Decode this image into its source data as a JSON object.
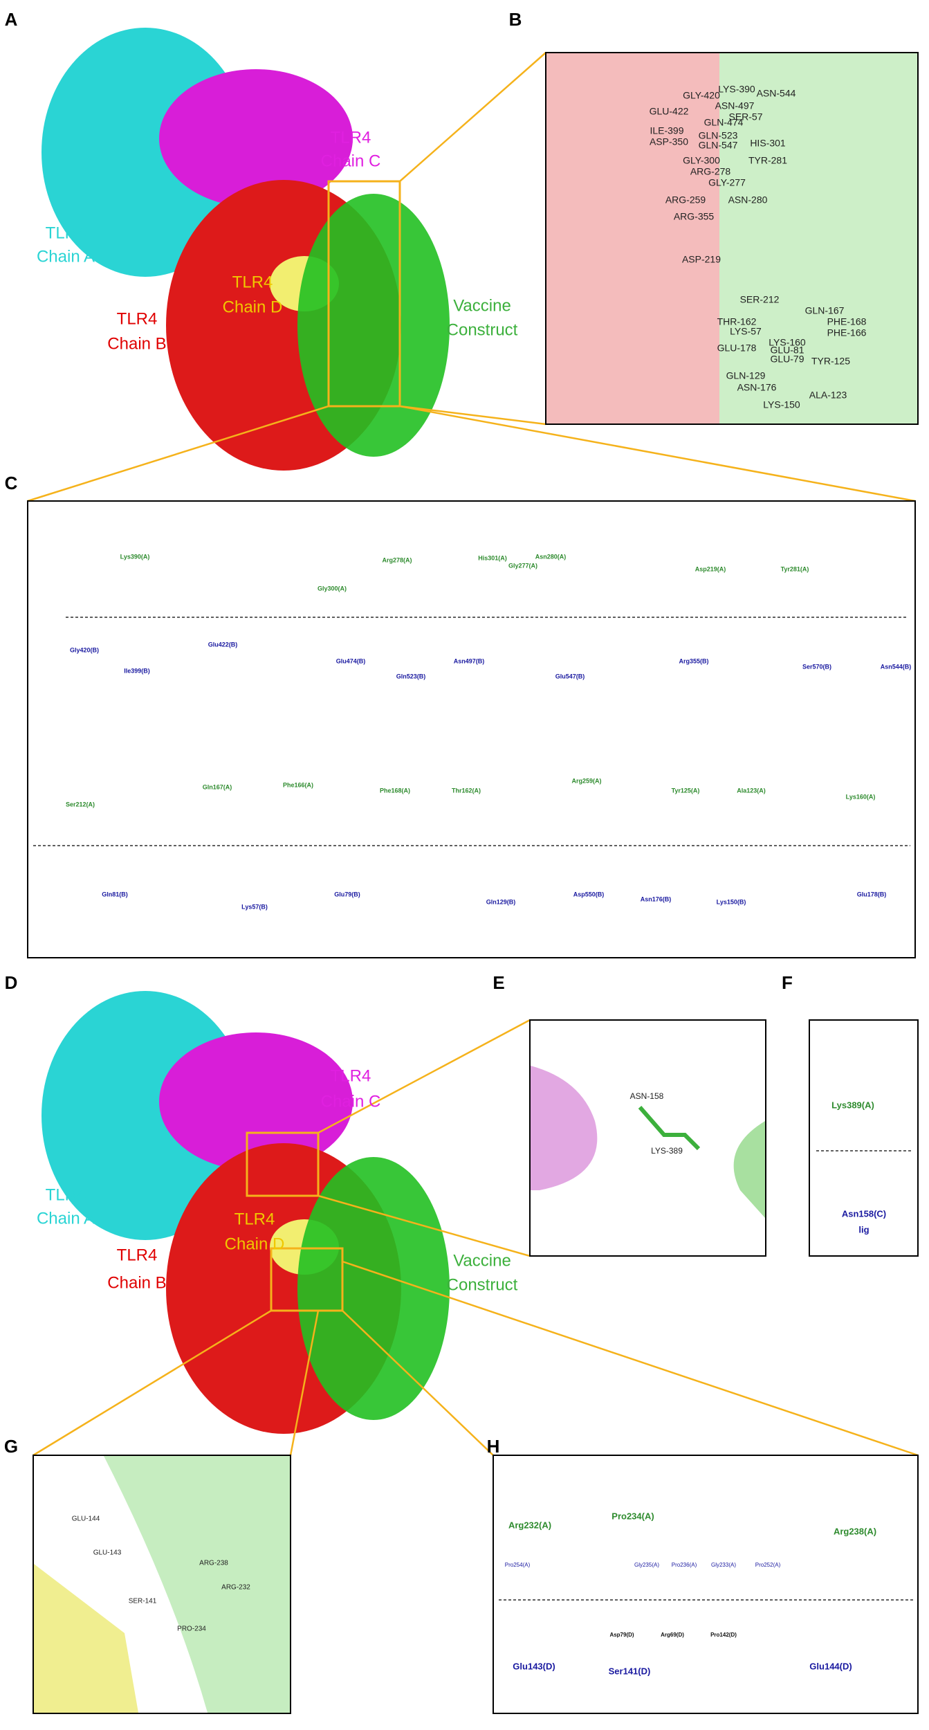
{
  "panels": [
    {
      "letter": "A",
      "labels": [
        "TLR4",
        "Chain A",
        "TLR4",
        "Chain C",
        "TLR4",
        "Chain D",
        "TLR4",
        "Chain B",
        "Vaccine",
        "Construct"
      ]
    },
    {
      "letter": "B",
      "labels": [
        "GLY-420",
        "LYS-390",
        "ASN-544",
        "ASN-497",
        "SER-57",
        "GLU-422",
        "GLN-474",
        "GLN-523",
        "ILE-399",
        "ASP-350",
        "GLN-547",
        "HIS-301",
        "GLY-300",
        "TYR-281",
        "ARG-278",
        "GLY-277",
        "ARG-259",
        "ASN-280",
        "ARG-355",
        "ASP-219",
        "SER-212",
        "GLN-167",
        "THR-162",
        "PHE-168",
        "LYS-57",
        "PHE-166",
        "LYS-160",
        "GLU-178",
        "GLU-81",
        "GLU-79",
        "TYR-125",
        "GLN-129",
        "ASN-176",
        "ALA-123",
        "LYS-150"
      ]
    },
    {
      "letter": "C",
      "labels": [
        "Lys390(A)",
        "Gly300(A)",
        "Arg278(A)",
        "His301(A)",
        "Gly277(A)",
        "Asn280(A)",
        "Asp219(A)",
        "Tyr281(A)",
        "Gly420(B)",
        "Ile399(B)",
        "Glu422(B)",
        "Glu474(B)",
        "Gln523(B)",
        "Asn497(B)",
        "Glu547(B)",
        "Arg355(B)",
        "Ser570(B)",
        "Asn544(B)",
        "Ser212(A)",
        "Gln167(A)",
        "Phe166(A)",
        "Phe168(A)",
        "Thr162(A)",
        "Arg259(A)",
        "Tyr125(A)",
        "Ala123(A)",
        "Lys160(A)",
        "Gln81(B)",
        "Lys57(B)",
        "Glu79(B)",
        "Gln129(B)",
        "Asp550(B)",
        "Asn176(B)",
        "Lys150(B)",
        "Glu178(B)"
      ]
    },
    {
      "letter": "D",
      "labels": [
        "TLR4",
        "Chain C",
        "TLR4",
        "Chain A",
        "TLR4",
        "Chain D",
        "TLR4",
        "Chain B",
        "Vaccine",
        "Construct"
      ]
    },
    {
      "letter": "E",
      "labels": [
        "ASN-158",
        "LYS-389"
      ]
    },
    {
      "letter": "F",
      "labels": [
        "Lys389(A)",
        "Asn158(C)",
        "lig"
      ]
    },
    {
      "letter": "G",
      "labels": [
        "GLU-144",
        "GLU-143",
        "ARG-238",
        "SER-141",
        "ARG-232",
        "PRO-234"
      ]
    },
    {
      "letter": "H",
      "labels": [
        "Arg232(A)",
        "Pro234(A)",
        "Arg238(A)",
        "Pro254(A)",
        "Gly235(A)",
        "Pro236(A)",
        "Gly233(A)",
        "Pro252(A)",
        "Asp79(D)",
        "Arg69(D)",
        "Pro142(D)",
        "Glu143(D)",
        "Ser141(D)",
        "Glu144(D)"
      ]
    }
  ]
}
